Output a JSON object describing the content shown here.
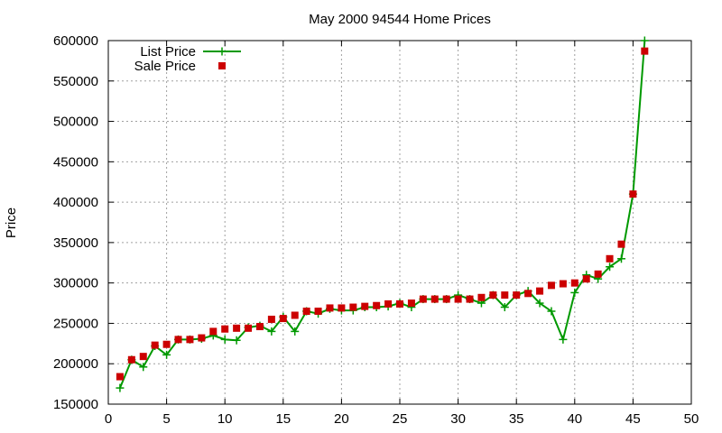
{
  "chart_data": {
    "type": "line",
    "title": "May 2000 94544 Home Prices",
    "xlabel": "",
    "ylabel": "Price",
    "xlim": [
      0,
      50
    ],
    "ylim": [
      150000,
      600000
    ],
    "xticks": [
      0,
      5,
      10,
      15,
      20,
      25,
      30,
      35,
      40,
      45,
      50
    ],
    "yticks": [
      150000,
      200000,
      250000,
      300000,
      350000,
      400000,
      450000,
      500000,
      550000,
      600000
    ],
    "grid": true,
    "legend_position": "top-left",
    "series": [
      {
        "name": "List Price",
        "style": "line-plus",
        "color": "#009900",
        "x": [
          1,
          2,
          3,
          4,
          5,
          6,
          7,
          8,
          9,
          10,
          11,
          12,
          13,
          14,
          15,
          16,
          17,
          18,
          19,
          20,
          21,
          22,
          23,
          24,
          25,
          26,
          27,
          28,
          29,
          30,
          31,
          32,
          33,
          34,
          35,
          36,
          37,
          38,
          39,
          40,
          41,
          42,
          43,
          44,
          45,
          46
        ],
        "values": [
          170000,
          205000,
          196000,
          222000,
          211000,
          230000,
          230000,
          231000,
          235000,
          230000,
          229000,
          245000,
          247000,
          240000,
          258000,
          240000,
          265000,
          262000,
          268000,
          266000,
          266000,
          270000,
          270000,
          271000,
          275000,
          270000,
          280000,
          280000,
          280000,
          285000,
          280000,
          275000,
          285000,
          270000,
          285000,
          290000,
          275000,
          265000,
          230000,
          288000,
          310000,
          305000,
          320000,
          330000,
          410000,
          600000
        ]
      },
      {
        "name": "Sale Price",
        "style": "square",
        "color": "#cc0000",
        "x": [
          1,
          2,
          3,
          4,
          5,
          6,
          7,
          8,
          9,
          10,
          11,
          12,
          13,
          14,
          15,
          16,
          17,
          18,
          19,
          20,
          21,
          22,
          23,
          24,
          25,
          26,
          27,
          28,
          29,
          30,
          31,
          32,
          33,
          34,
          35,
          36,
          37,
          38,
          39,
          40,
          41,
          42,
          43,
          44,
          45,
          46
        ],
        "values": [
          184000,
          205000,
          209000,
          223000,
          224000,
          230000,
          230000,
          232000,
          240000,
          243000,
          244000,
          244000,
          246000,
          255000,
          256000,
          260000,
          265000,
          265000,
          269000,
          269000,
          270000,
          271000,
          272000,
          274000,
          274000,
          275000,
          280000,
          280000,
          280000,
          280000,
          280000,
          282000,
          285000,
          285000,
          285000,
          287000,
          290000,
          297000,
          299000,
          300000,
          305000,
          311000,
          330000,
          348000,
          410000,
          587000
        ]
      }
    ]
  }
}
